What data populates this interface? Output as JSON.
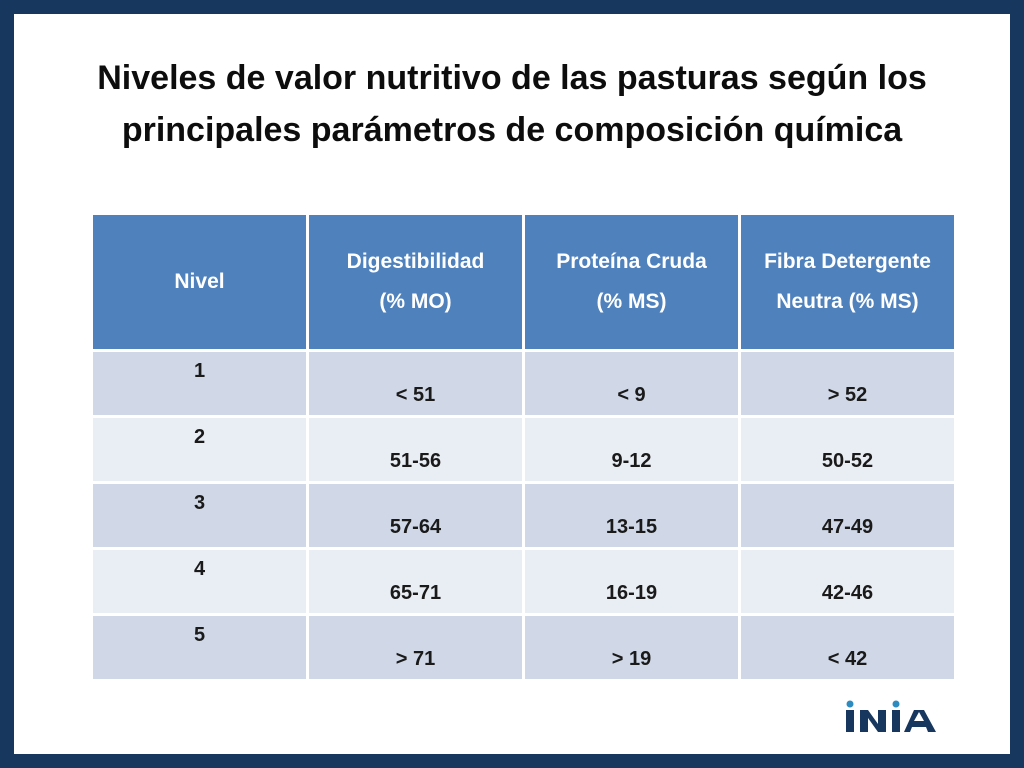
{
  "title": {
    "line1": "Niveles de valor nutritivo de las pasturas según los",
    "line2": "principales parámetros de composición química"
  },
  "table": {
    "headers": [
      {
        "line1": "Nivel",
        "line2": ""
      },
      {
        "line1": "Digestibilidad",
        "line2": "(% MO)"
      },
      {
        "line1": "Proteína Cruda",
        "line2": "(% MS)"
      },
      {
        "line1": "Fibra Detergente",
        "line2": "Neutra (% MS)"
      }
    ],
    "rows": [
      [
        "1",
        "< 51",
        "< 9",
        "> 52"
      ],
      [
        "2",
        "51-56",
        "9-12",
        "50-52"
      ],
      [
        "3",
        "57-64",
        "13-15",
        "47-49"
      ],
      [
        "4",
        "65-71",
        "16-19",
        "42-46"
      ],
      [
        "5",
        "> 71",
        "> 19",
        "< 42"
      ]
    ]
  },
  "logo": {
    "text": "INIA",
    "colors": {
      "dark": "#17375e",
      "accent": "#2e8bc0"
    }
  },
  "colors": {
    "frame": "#17375e",
    "header_bg": "#4f81bd",
    "row_odd": "#d0d8e8",
    "row_even": "#e9edf4"
  }
}
